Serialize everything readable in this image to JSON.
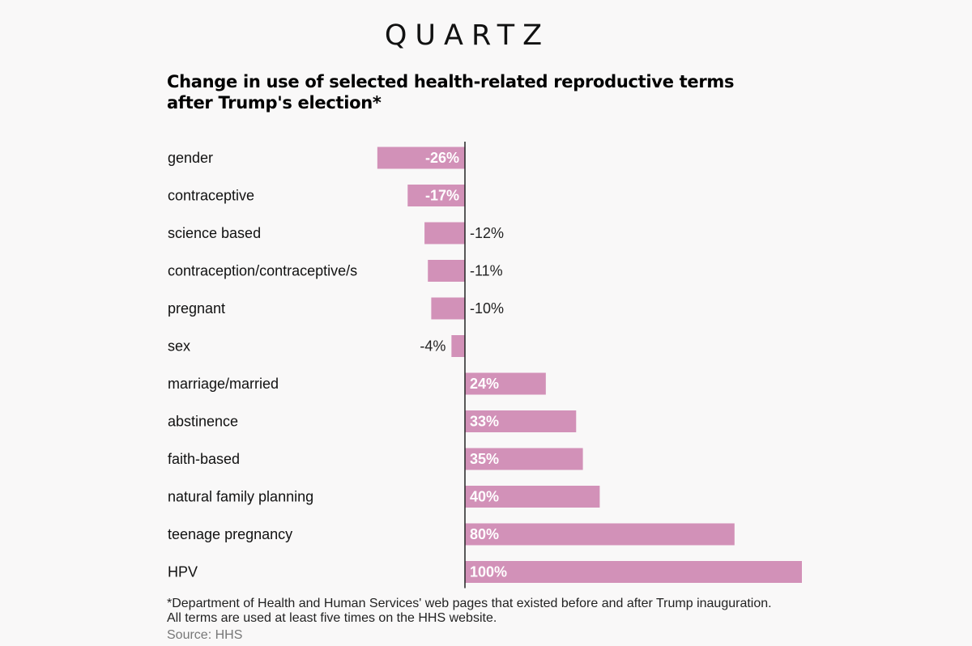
{
  "brand": "QUARTZ",
  "chart_data": {
    "type": "bar",
    "orientation": "horizontal",
    "title": "Change in use of selected health-related reproductive terms after Trump's election*",
    "categories": [
      "gender",
      "contraceptive",
      "science based",
      "contraception/contraceptive/s",
      "pregnant",
      "sex",
      "marriage/married",
      "abstinence",
      "faith-based",
      "natural family planning",
      "teenage pregnancy",
      "HPV"
    ],
    "values": [
      -26,
      -17,
      -12,
      -11,
      -10,
      -4,
      24,
      33,
      35,
      40,
      80,
      100
    ],
    "value_labels": [
      "-26%",
      "-17%",
      "-12%",
      "-11%",
      "-10%",
      "-4%",
      "24%",
      "33%",
      "35%",
      "40%",
      "80%",
      "100%"
    ],
    "unit": "%",
    "xlim": [
      -26,
      100
    ],
    "grid": false,
    "legend": "none",
    "bar_color": "#d291b8"
  },
  "footnote_line1": "*Department of Health and Human Services' web pages that existed before and after Trump inauguration.",
  "footnote_line2": "All terms are used at least five times on the HHS website.",
  "source": "Source: HHS"
}
